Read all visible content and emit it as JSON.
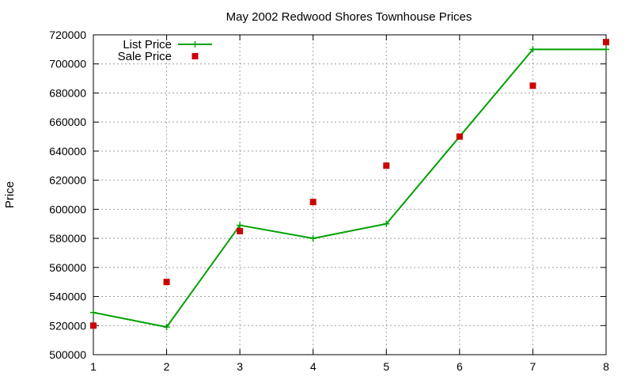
{
  "chart_data": {
    "type": "line",
    "title": "May 2002 Redwood Shores Townhouse Prices",
    "xlabel": "",
    "ylabel": "Price",
    "x": [
      1,
      2,
      3,
      4,
      5,
      6,
      7,
      8
    ],
    "xlim": [
      1,
      8
    ],
    "ylim": [
      500000,
      720000
    ],
    "x_ticks": [
      1,
      2,
      3,
      4,
      5,
      6,
      7,
      8
    ],
    "y_ticks": [
      500000,
      520000,
      540000,
      560000,
      580000,
      600000,
      620000,
      640000,
      660000,
      680000,
      700000,
      720000
    ],
    "grid": true,
    "legend_position": "top-left",
    "series": [
      {
        "name": "List Price",
        "style": "linespoints",
        "marker": "plus",
        "color": "#00a000",
        "values": [
          529000,
          519000,
          589000,
          580000,
          590000,
          650000,
          710000,
          710000
        ]
      },
      {
        "name": "Sale Price",
        "style": "points",
        "marker": "square",
        "color": "#cc0000",
        "values": [
          520000,
          550000,
          585000,
          605000,
          630000,
          650000,
          685000,
          715000
        ]
      }
    ]
  }
}
